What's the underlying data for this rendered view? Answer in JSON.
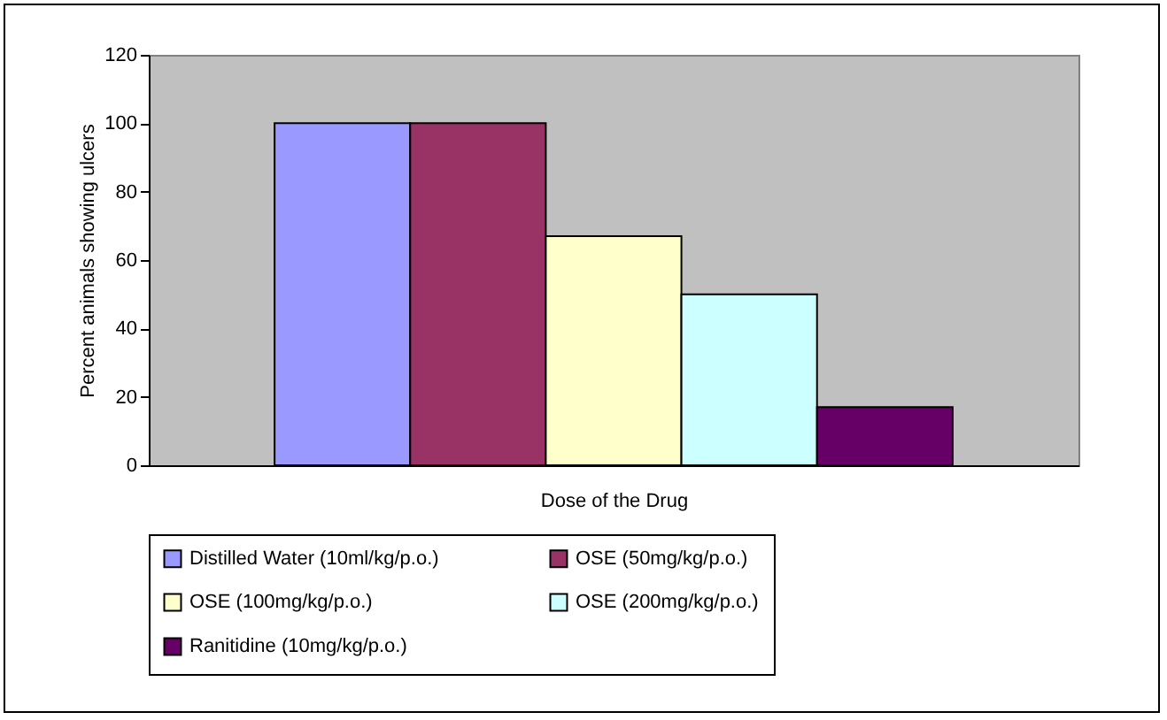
{
  "chart_data": {
    "type": "bar",
    "xlabel": "Dose of the Drug",
    "ylabel": "Percent animals showing ulcers",
    "categories": [
      null
    ],
    "series": [
      {
        "name": "Distilled Water (10ml/kg/p.o.)",
        "color": "#9999ff",
        "values": [
          100
        ]
      },
      {
        "name": "OSE (50mg/kg/p.o.)",
        "color": "#993366",
        "values": [
          100
        ]
      },
      {
        "name": "OSE (100mg/kg/p.o.)",
        "color": "#ffffcc",
        "values": [
          67
        ]
      },
      {
        "name": "OSE (200mg/kg/p.o.)",
        "color": "#ccffff",
        "values": [
          50
        ]
      },
      {
        "name": "Ranitidine (10mg/kg/p.o.)",
        "color": "#660066",
        "values": [
          17
        ]
      }
    ],
    "ylim": [
      0,
      120
    ],
    "yticks": [
      0,
      20,
      40,
      60,
      80,
      100,
      120
    ],
    "grid": false,
    "legend": "bottom"
  }
}
